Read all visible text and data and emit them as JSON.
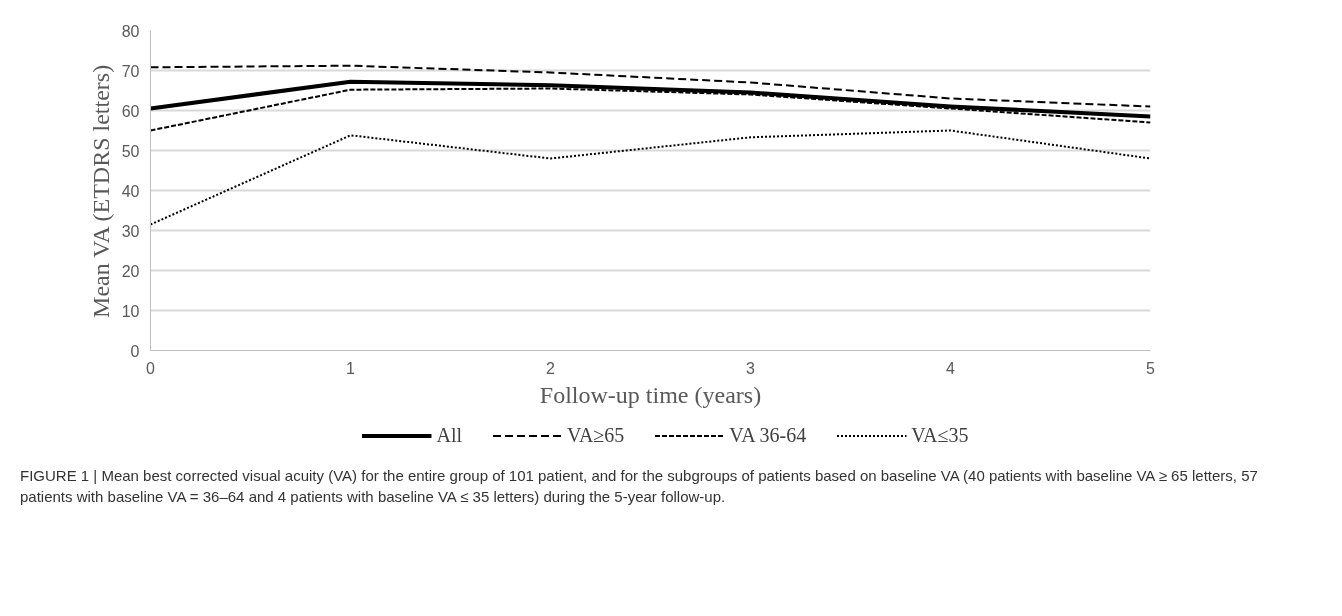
{
  "chart_data": {
    "type": "line",
    "xlabel": "Follow-up time (years)",
    "ylabel": "Mean VA (ETDRS letters)",
    "x": [
      0,
      1,
      2,
      3,
      4,
      5
    ],
    "series": [
      {
        "name": "All",
        "color": "#000000",
        "line_style": "solid",
        "values": [
          60.5,
          67.2,
          66.3,
          64.5,
          61,
          58.5
        ]
      },
      {
        "name": "VA≥65",
        "color": "#000000",
        "line_style": "dashed",
        "values": [
          70.8,
          71.2,
          69.5,
          67,
          63,
          61
        ]
      },
      {
        "name": "VA 36-64",
        "color": "#000000",
        "line_style": "dashed",
        "values": [
          55,
          65.2,
          65.5,
          64,
          60.5,
          57
        ]
      },
      {
        "name": "VA≤35",
        "color": "#000000",
        "line_style": "dotted",
        "values": [
          31.5,
          53.8,
          48,
          53.3,
          55,
          48
        ]
      }
    ],
    "xlim": [
      0,
      5
    ],
    "ylim": [
      0,
      80
    ],
    "xticks": [
      0,
      1,
      2,
      3,
      4,
      5
    ],
    "yticks": [
      0,
      10,
      20,
      30,
      40,
      50,
      60,
      70,
      80
    ],
    "grid": "y",
    "legend": "bottom",
    "marker": "none",
    "annotations": [
      "FIGURE 1 | Mean best corrected visual acuity (VA) for the entire group of 101 patient, and for the subgroups of patients based on baseline VA (40 patients with baseline VA ≥ 65 letters, 57 patients with baseline VA = 36–64 and 4 patients with baseline VA ≤ 35 letters) during the 5-year follow-up."
    ]
  }
}
